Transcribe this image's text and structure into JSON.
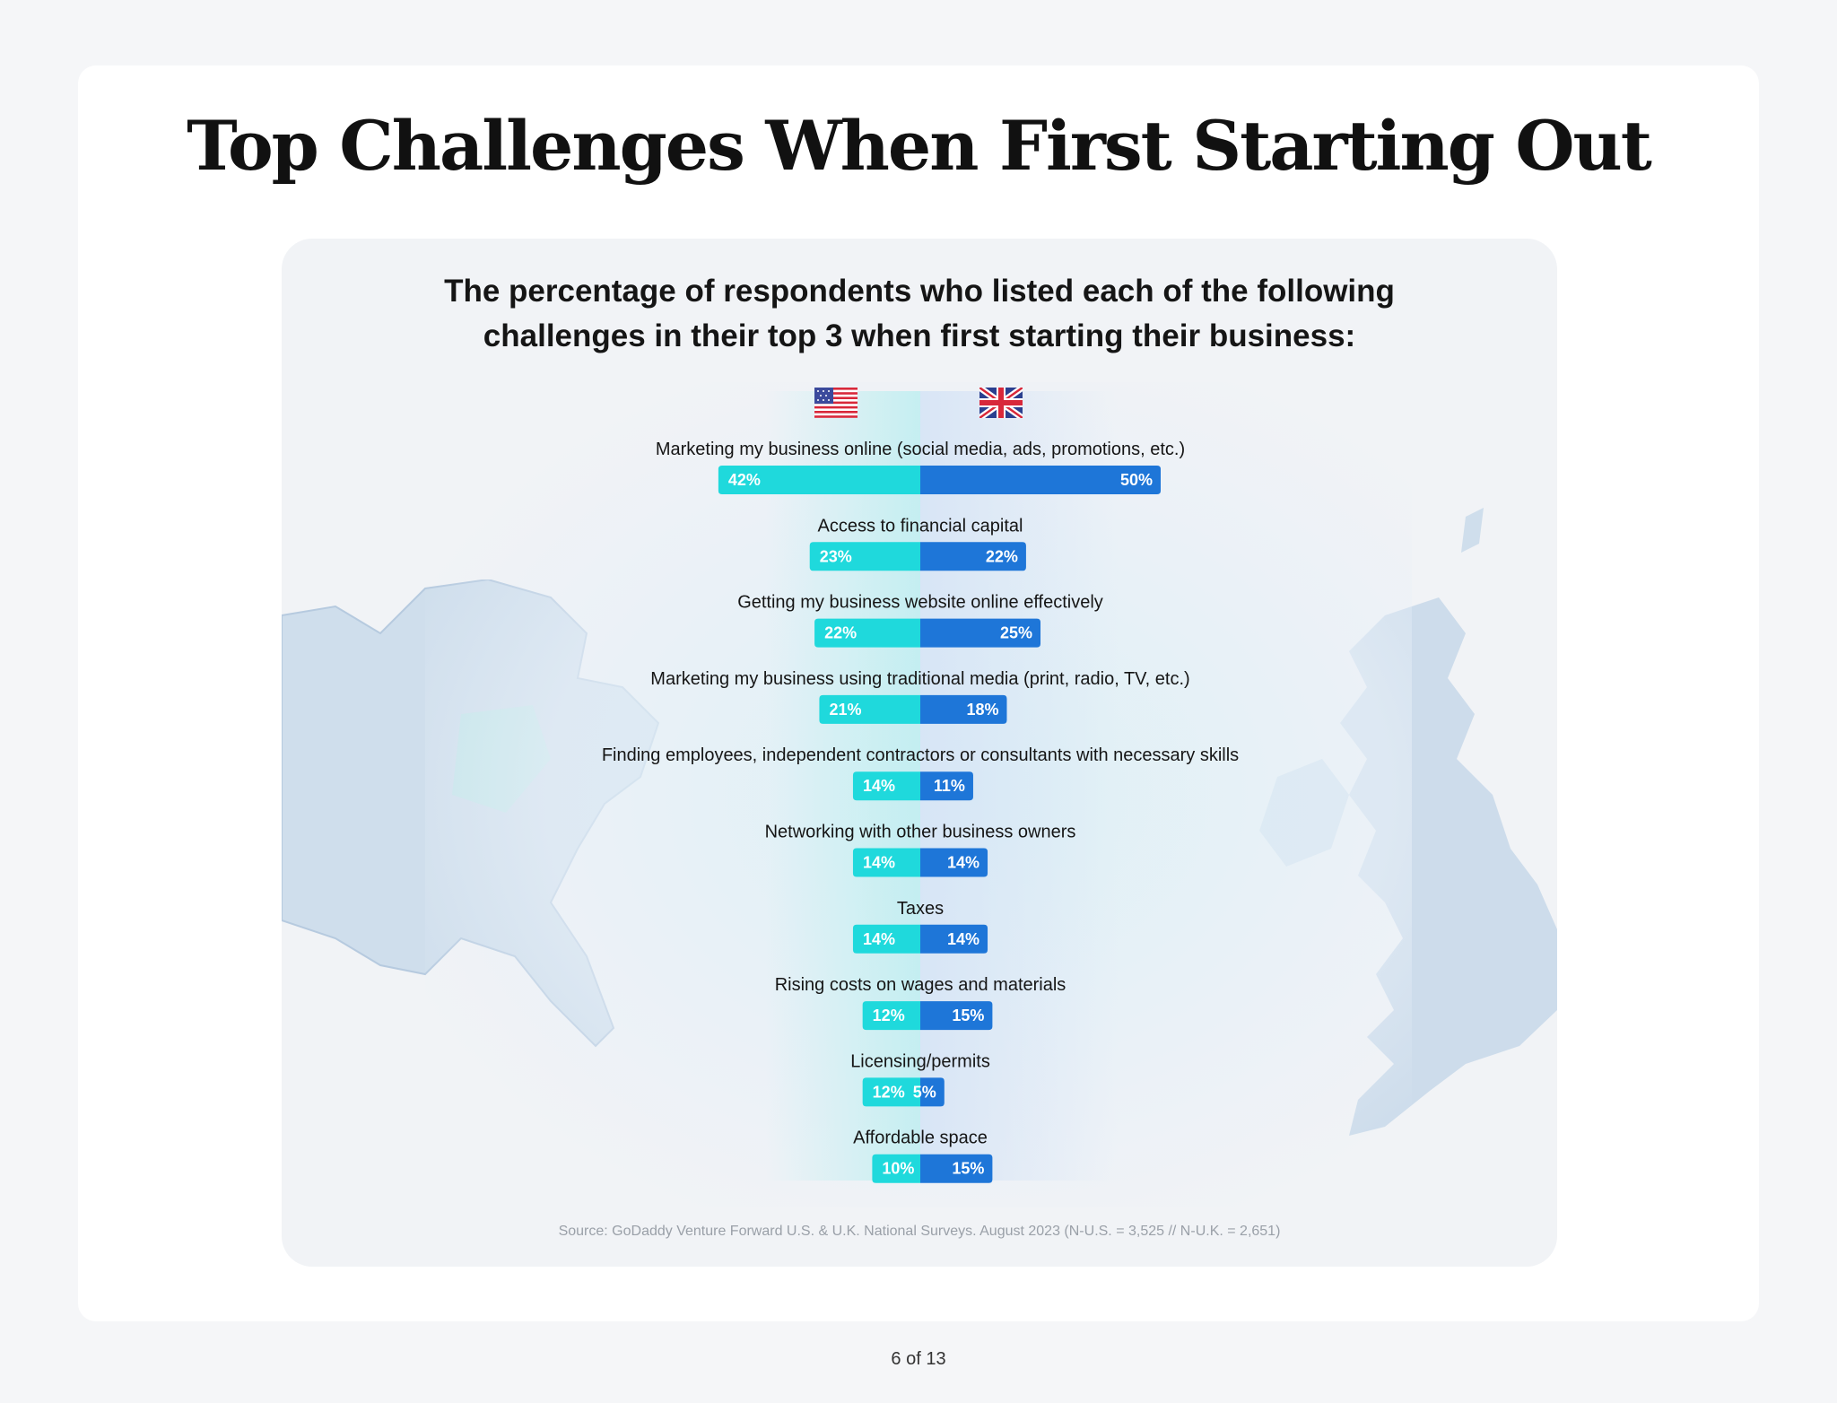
{
  "page": {
    "title": "Top Challenges When First Starting Out",
    "page_indicator": "6 of 13"
  },
  "chart_data": {
    "type": "bar",
    "title": "The percentage of respondents who listed each of the following challenges in their top 3 when first starting their business:",
    "subtitle_lines": [
      "The percentage of respondents who listed each of the following",
      "challenges in their top 3 when first starting their business:"
    ],
    "orientation": "diverging-horizontal",
    "categories": [
      "Marketing my business online (social media, ads, promotions, etc.)",
      "Access to financial capital",
      "Getting my business website online effectively",
      "Marketing my business using traditional media (print, radio, TV, etc.)",
      "Finding employees, independent contractors or consultants with necessary skills",
      "Networking with other business owners",
      "Taxes",
      "Rising costs on wages and materials",
      "Licensing/permits",
      "Affordable space"
    ],
    "series": [
      {
        "key": "us",
        "flag_icon": "us-flag-icon",
        "color": "#1fd9dc",
        "values": [
          42,
          23,
          22,
          21,
          14,
          14,
          14,
          12,
          12,
          10
        ],
        "labels": [
          "42%",
          "23%",
          "22%",
          "21%",
          "14%",
          "14%",
          "14%",
          "12%",
          "12%",
          "10%"
        ]
      },
      {
        "key": "uk",
        "flag_icon": "uk-flag-icon",
        "color": "#1e76d8",
        "values": [
          50,
          22,
          25,
          18,
          11,
          14,
          14,
          15,
          5,
          15
        ],
        "labels": [
          "50%",
          "22%",
          "25%",
          "18%",
          "11%",
          "14%",
          "14%",
          "15%",
          "5%",
          "15%"
        ]
      }
    ],
    "grid": false,
    "legend": "top-center flags",
    "source": "Source: GoDaddy Venture Forward U.S. & U.K. National Surveys. August 2023 (N-U.S. = 3,525 // N-U.K. = 2,651)"
  },
  "decor": {
    "left_map_icon": "usa-map-icon",
    "right_map_icon": "uk-map-icon",
    "map_color": "#c8d8ea"
  }
}
